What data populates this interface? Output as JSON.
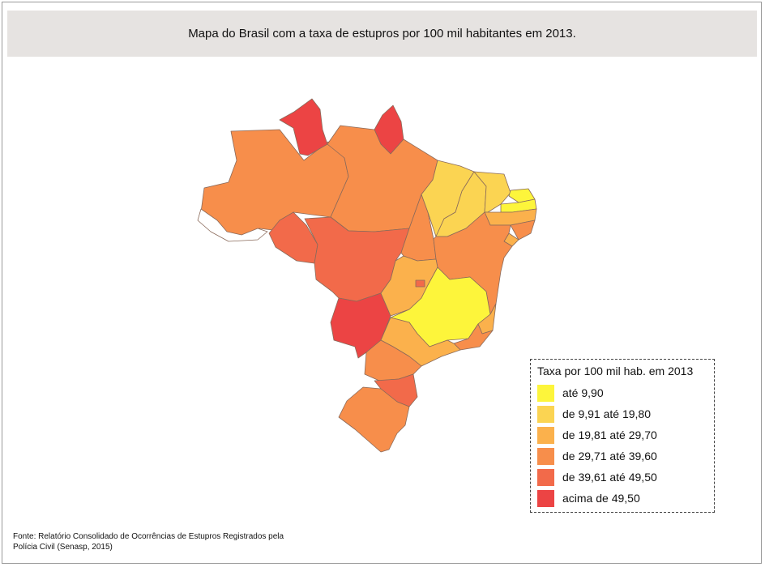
{
  "title": "Mapa do Brasil com a taxa de estupros por 100 mil habitantes em 2013.",
  "legend": {
    "title": "Taxa por 100 mil hab. em 2013",
    "classes": [
      {
        "label": "até 9,90",
        "color": "#fdf53b"
      },
      {
        "label": "de 9,91 até 19,80",
        "color": "#fbd452"
      },
      {
        "label": "de 19,81 até 29,70",
        "color": "#fbb14c"
      },
      {
        "label": "de 29,71 até 39,60",
        "color": "#f78e4b"
      },
      {
        "label": "de 39,61 até 49,50",
        "color": "#f26a4a"
      },
      {
        "label": "acima de 49,50",
        "color": "#ec4444"
      }
    ]
  },
  "colors": {
    "class_0": "#fdf53b",
    "class_1": "#fbd452",
    "class_2": "#fbb14c",
    "class_3": "#f78e4b",
    "class_4": "#f26a4a",
    "class_5": "#ec4444",
    "no_data": "#ffffff"
  },
  "source": {
    "line1": "Fonte: Relatório Consolidado de Ocorrências de Estupros Registrados pela",
    "line2": "Polícia Civil (Senasp, 2015)"
  }
}
